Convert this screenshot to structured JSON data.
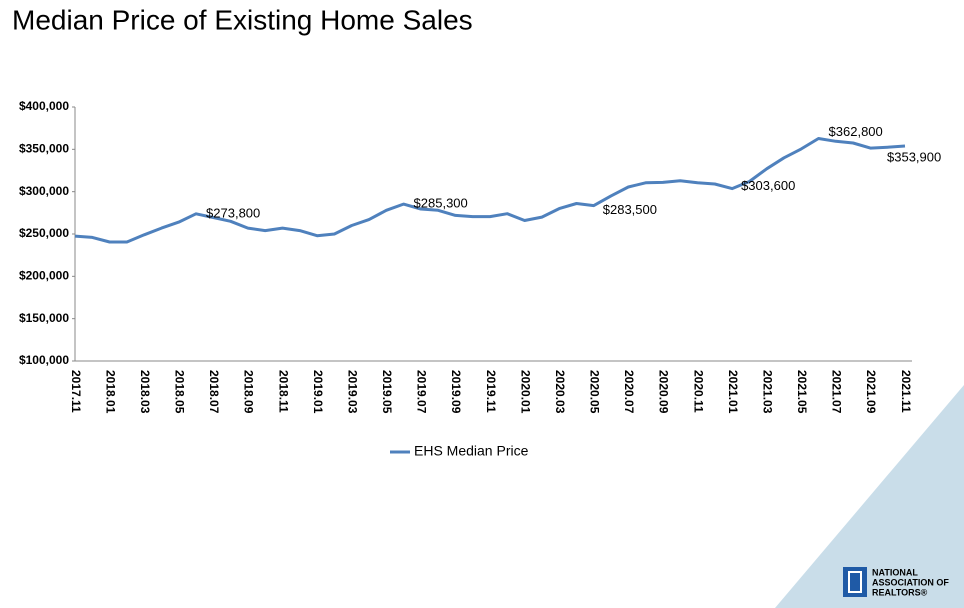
{
  "chart_data": {
    "type": "line",
    "title": "Median Price of Existing Home Sales",
    "categories": [
      "2017.11",
      null,
      "2018.01",
      null,
      "2018.03",
      null,
      "2018.05",
      null,
      "2018.07",
      null,
      "2018.09",
      null,
      "2018.11",
      null,
      "2019.01",
      null,
      "2019.03",
      null,
      "2019.05",
      null,
      "2019.07",
      null,
      "2019.09",
      null,
      "2019.11",
      null,
      "2020.01",
      null,
      "2020.03",
      null,
      "2020.05",
      null,
      "2020.07",
      null,
      "2020.09",
      null,
      "2020.11",
      null,
      "2021.01",
      null,
      "2021.03",
      null,
      "2021.05",
      null,
      "2021.07",
      null,
      "2021.09",
      null,
      "2021.11"
    ],
    "series": [
      {
        "name": "EHS Median Price",
        "color": "#4f81bd",
        "values": [
          247500,
          246000,
          240500,
          240500,
          249000,
          257000,
          264000,
          273800,
          269500,
          265000,
          257000,
          254000,
          257000,
          254000,
          248000,
          250000,
          260000,
          267000,
          278000,
          285300,
          279500,
          278000,
          272000,
          270500,
          270500,
          274000,
          266000,
          270000,
          280000,
          286000,
          283500,
          295000,
          305500,
          310500,
          311000,
          313000,
          310500,
          309000,
          303600,
          312000,
          327000,
          340000,
          350500,
          362800,
          359500,
          357500,
          351500,
          352500,
          353900
        ],
        "value_labels": [
          null,
          null,
          null,
          null,
          null,
          null,
          null,
          "$273,800",
          null,
          null,
          null,
          null,
          null,
          null,
          null,
          null,
          null,
          null,
          null,
          "$285,300",
          null,
          null,
          null,
          null,
          null,
          null,
          null,
          null,
          null,
          null,
          "$283,500",
          null,
          null,
          null,
          null,
          null,
          null,
          null,
          "$303,600",
          null,
          null,
          null,
          null,
          "$362,800",
          null,
          null,
          null,
          null,
          "$353,900"
        ]
      }
    ],
    "ylim": [
      100000,
      400000
    ],
    "yticks": [
      {
        "value": 100000,
        "label": "$100,000"
      },
      {
        "value": 150000,
        "label": "$150,000"
      },
      {
        "value": 200000,
        "label": "$200,000"
      },
      {
        "value": 250000,
        "label": "$250,000"
      },
      {
        "value": 300000,
        "label": "$300,000"
      },
      {
        "value": 350000,
        "label": "$350,000"
      },
      {
        "value": 400000,
        "label": "$400,000"
      }
    ],
    "grid": false,
    "legend": "bottom"
  },
  "logo": {
    "line1": "NATIONAL",
    "line2": "ASSOCIATION OF",
    "line3": "REALTORS®"
  }
}
